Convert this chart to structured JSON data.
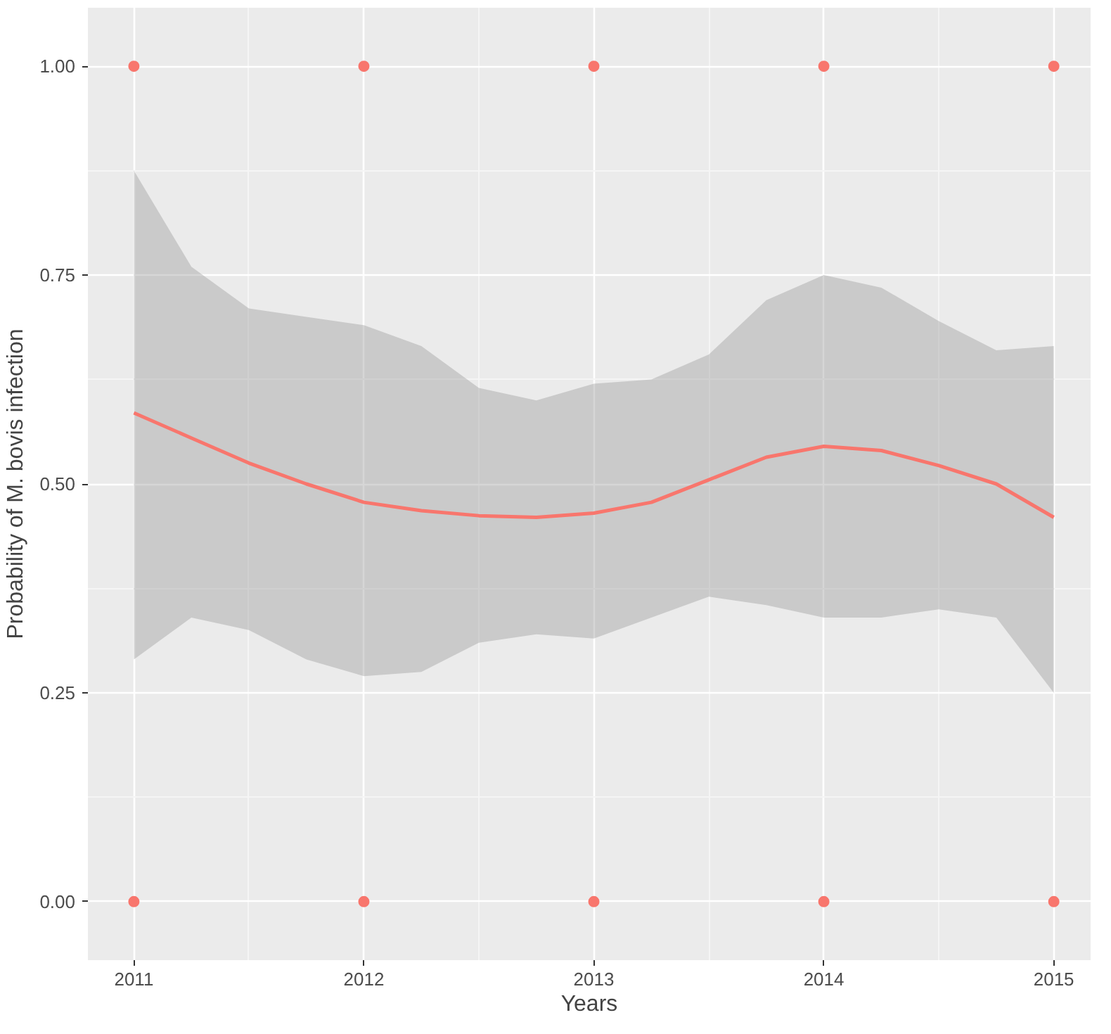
{
  "chart_data": {
    "type": "scatter",
    "xlabel": "Years",
    "ylabel": "Probability of M. bovis infection",
    "xlim": [
      2010.8,
      2015.16
    ],
    "ylim": [
      -0.07,
      1.07
    ],
    "xticks": [
      2011,
      2012,
      2013,
      2014,
      2015
    ],
    "yticks": [
      {
        "value": 0,
        "label": "0.00"
      },
      {
        "value": 0.25,
        "label": "0.25"
      },
      {
        "value": 0.5,
        "label": "0.50"
      },
      {
        "value": 0.75,
        "label": "0.75"
      },
      {
        "value": 1,
        "label": "1.00"
      }
    ],
    "grid": true,
    "series": [
      {
        "marker": "circle",
        "color": "#f8766d",
        "x": [
          2011,
          2011,
          2012,
          2012,
          2013,
          2013,
          2014,
          2014,
          2015,
          2015
        ],
        "values": [
          1,
          0,
          1,
          0,
          1,
          0,
          1,
          0,
          1,
          0
        ]
      },
      {
        "type": "line",
        "marker": "none",
        "color": "#f8766d",
        "line_style": "solid",
        "x": [
          2011,
          2011.25,
          2011.5,
          2011.75,
          2012,
          2012.25,
          2012.5,
          2012.75,
          2013,
          2013.25,
          2013.5,
          2013.75,
          2014,
          2014.25,
          2014.5,
          2014.75,
          2015
        ],
        "values": [
          0.585,
          0.555,
          0.525,
          0.5,
          0.478,
          0.468,
          0.462,
          0.46,
          0.465,
          0.478,
          0.505,
          0.532,
          0.545,
          0.54,
          0.522,
          0.5,
          0.46
        ],
        "upper": [
          0.875,
          0.76,
          0.71,
          0.7,
          0.69,
          0.665,
          0.615,
          0.6,
          0.62,
          0.625,
          0.655,
          0.72,
          0.75,
          0.735,
          0.695,
          0.66,
          0.665
        ],
        "lower": [
          0.29,
          0.34,
          0.325,
          0.29,
          0.27,
          0.275,
          0.31,
          0.32,
          0.315,
          0.34,
          0.365,
          0.355,
          0.34,
          0.34,
          0.35,
          0.34,
          0.25
        ]
      }
    ]
  }
}
